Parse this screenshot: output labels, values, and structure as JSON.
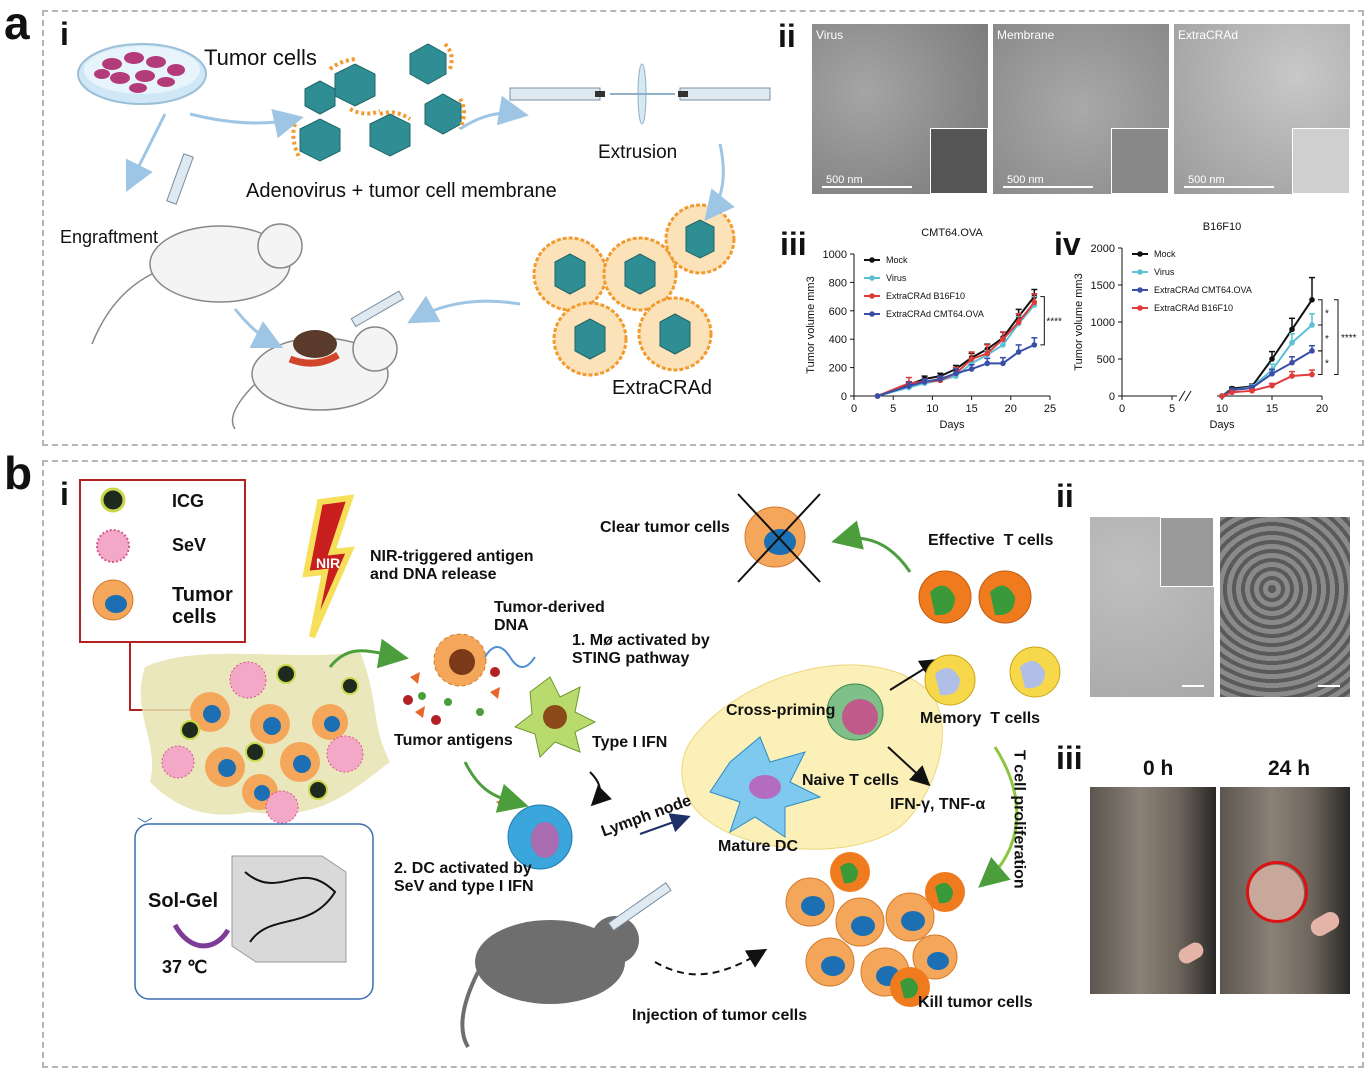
{
  "panels": {
    "a": {
      "letter": "a",
      "sub_i": "i",
      "sub_ii": "ii",
      "sub_iii": "iii",
      "sub_iv": "iv",
      "labels": {
        "tumor_cells": "Tumor cells",
        "adenovirus_membrane": "Adenovirus + tumor cell membrane",
        "extrusion": "Extrusion",
        "engraftment": "Engraftment",
        "extracrad": "ExtraCRAd"
      },
      "em_images": [
        {
          "title": "Virus",
          "scale": "500 nm"
        },
        {
          "title": "Membrane",
          "scale": "500 nm"
        },
        {
          "title": "ExtraCRAd",
          "scale": "500 nm"
        }
      ]
    },
    "b": {
      "letter": "b",
      "sub_i": "i",
      "sub_ii": "ii",
      "sub_iii": "iii",
      "legend": {
        "icg": "ICG",
        "sev": "SeV",
        "tumor_cells": "Tumor cells"
      },
      "labels": {
        "nir": "NIR",
        "nir_release": "NIR-triggered antigen and DNA release",
        "tumor_dna": "Tumor-derived DNA",
        "mo_activated": "1. Mø activated by STING pathway",
        "tumor_antigens": "Tumor antigens",
        "type_i_ifn": "Type I IFN",
        "dc_activated": "2. DC activated by SeV and type I IFN",
        "lymph_node": "Lymph node",
        "cross_priming": "Cross-priming",
        "naive_t": "Naive T cells",
        "mature_dc": "Mature DC",
        "ifn_tnf": "IFN-γ, TNF-α",
        "clear_tumor": "Clear tumor cells",
        "effective_t": "Effective  T cells",
        "memory_t": "Memory  T cells",
        "t_prolif": "T cell proliferation",
        "injection": "Injection of tumor cells",
        "kill_tumor": "Kill tumor cells",
        "sol_gel": "Sol-Gel",
        "temp": "37 ℃"
      },
      "photos": {
        "t0": "0 h",
        "t24": "24 h"
      }
    }
  },
  "chart_data": [
    {
      "type": "line",
      "title": "CMT64.OVA",
      "xlabel": "Days",
      "ylabel": "Tumor volume mm3",
      "xlim": [
        0,
        25
      ],
      "ylim": [
        0,
        1000
      ],
      "xticks": [
        0,
        5,
        10,
        15,
        20,
        25
      ],
      "yticks": [
        0,
        200,
        400,
        600,
        800,
        1000
      ],
      "legend_position": "top-left",
      "significance": "****",
      "series": [
        {
          "name": "Mock",
          "color": "#111111",
          "x": [
            3,
            7,
            9,
            11,
            13,
            15,
            17,
            19,
            21,
            23
          ],
          "y": [
            0,
            80,
            120,
            140,
            190,
            270,
            330,
            410,
            560,
            700
          ],
          "err": [
            0,
            20,
            20,
            20,
            25,
            30,
            35,
            40,
            50,
            50
          ]
        },
        {
          "name": "Virus",
          "color": "#5bc0d4",
          "x": [
            3,
            7,
            9,
            11,
            13,
            15,
            17,
            19,
            21,
            23
          ],
          "y": [
            0,
            60,
            90,
            110,
            140,
            230,
            290,
            360,
            510,
            640
          ],
          "err": [
            0,
            15,
            15,
            20,
            20,
            30,
            30,
            40,
            50,
            60
          ]
        },
        {
          "name": "ExtraCRAd B16F10",
          "color": "#e03a3a",
          "x": [
            3,
            7,
            9,
            11,
            13,
            15,
            17,
            19,
            21,
            23
          ],
          "y": [
            0,
            90,
            100,
            110,
            160,
            260,
            300,
            400,
            520,
            660
          ],
          "err": [
            0,
            40,
            20,
            20,
            40,
            50,
            60,
            50,
            60,
            60
          ]
        },
        {
          "name": "ExtraCRAd CMT64.OVA",
          "color": "#3a4ea8",
          "x": [
            3,
            7,
            9,
            11,
            13,
            15,
            17,
            19,
            21,
            23
          ],
          "y": [
            0,
            70,
            100,
            120,
            160,
            190,
            230,
            230,
            310,
            360
          ],
          "err": [
            0,
            25,
            20,
            20,
            30,
            30,
            35,
            40,
            50,
            50
          ]
        }
      ]
    },
    {
      "type": "line",
      "title": "B16F10",
      "xlabel": "Days",
      "ylabel": "Tumor volume mm3",
      "xlim": [
        0,
        20
      ],
      "ylim": [
        0,
        2000
      ],
      "xticks": [
        0,
        5,
        10,
        15,
        20
      ],
      "yticks": [
        0,
        500,
        1000,
        1500,
        2000
      ],
      "axis_break": [
        5,
        10
      ],
      "legend_position": "top-left",
      "significance": [
        "*",
        "*",
        "*",
        "****"
      ],
      "series": [
        {
          "name": "Mock",
          "color": "#111111",
          "x": [
            10,
            11,
            13,
            15,
            17,
            19
          ],
          "y": [
            0,
            100,
            130,
            500,
            900,
            1300
          ],
          "err": [
            0,
            20,
            30,
            100,
            150,
            300
          ]
        },
        {
          "name": "Virus",
          "color": "#5bc0d4",
          "x": [
            10,
            11,
            13,
            15,
            17,
            19
          ],
          "y": [
            0,
            80,
            120,
            350,
            720,
            960
          ],
          "err": [
            0,
            20,
            30,
            80,
            120,
            150
          ]
        },
        {
          "name": "ExtraCRAd CMT64.OVA",
          "color": "#3a4ea8",
          "x": [
            10,
            11,
            13,
            15,
            17,
            19
          ],
          "y": [
            0,
            80,
            110,
            300,
            450,
            610
          ],
          "err": [
            0,
            20,
            30,
            60,
            80,
            70
          ]
        },
        {
          "name": "ExtraCRAd B16F10",
          "color": "#e03a3a",
          "x": [
            10,
            11,
            13,
            15,
            17,
            19
          ],
          "y": [
            0,
            50,
            70,
            140,
            270,
            290
          ],
          "err": [
            0,
            15,
            20,
            30,
            60,
            60
          ]
        }
      ]
    }
  ],
  "colors": {
    "teal": "#2f8e94",
    "membrane_orange": "#f29a2e",
    "tumor_orange": "#f4a75b",
    "nucleus_blue": "#1d6fb3",
    "sev_pink": "#e68bb2",
    "dc_blue": "#3aa6dc",
    "t_orange": "#f07b1e",
    "t_green": "#3a9a3a",
    "memory_yellow": "#f6d84a",
    "arrow_green": "#4c9e3c",
    "arrow_blue": "#9ec6e4",
    "red_box": "#b22222"
  }
}
